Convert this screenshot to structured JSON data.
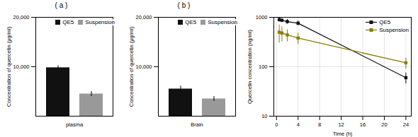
{
  "chart_data": [
    {
      "type": "bar",
      "title": "( a )",
      "categories": [
        "plasma"
      ],
      "series": [
        {
          "name": "QE5",
          "color": "#111111",
          "values": [
            9800
          ],
          "errors": [
            400
          ]
        },
        {
          "name": "Suspension",
          "color": "#999999",
          "values": [
            4500
          ],
          "errors": [
            500
          ]
        }
      ],
      "ylabel": "Concentration of quercetin (μg/ml)",
      "ylim": [
        0,
        20000
      ],
      "yticks": [
        {
          "value": 10000,
          "label": "10,000"
        },
        {
          "value": 20000,
          "label": "20,000"
        }
      ],
      "legend": "upper right"
    },
    {
      "type": "bar",
      "title": "( b )",
      "categories": [
        "Brain"
      ],
      "series": [
        {
          "name": "QE5",
          "color": "#111111",
          "values": [
            5500
          ],
          "errors": [
            600
          ]
        },
        {
          "name": "Suspension",
          "color": "#999999",
          "values": [
            3500
          ],
          "errors": [
            500
          ]
        }
      ],
      "ylabel": "Concentration of quercetin (μg/ml)",
      "ylim": [
        0,
        20000
      ],
      "yticks": [
        {
          "value": 10000,
          "label": "10,000"
        },
        {
          "value": 20000,
          "label": "20,000"
        }
      ],
      "legend": "upper right"
    },
    {
      "type": "line",
      "xlabel": "Time (h)",
      "ylabel": "Quercetin concentration (ng/ml)",
      "x": [
        0.5,
        1,
        2,
        4,
        24
      ],
      "series": [
        {
          "name": "QE5",
          "color": "#111111",
          "marker": "square",
          "values": [
            900,
            870,
            820,
            760,
            60
          ],
          "errors": [
            100,
            80,
            90,
            80,
            15
          ]
        },
        {
          "name": "Suspension",
          "color": "#8B7D00",
          "marker": "square",
          "values": [
            500,
            480,
            440,
            380,
            120
          ],
          "errors": [
            200,
            160,
            120,
            100,
            30
          ]
        }
      ],
      "xlim": [
        -0.5,
        25
      ],
      "xticks": [
        0,
        4,
        8,
        12,
        16,
        20,
        24
      ],
      "ylim": [
        10,
        1000
      ],
      "yticks": [
        10,
        100,
        1000
      ],
      "log": "y",
      "grid": true,
      "legend": "upper right"
    }
  ]
}
